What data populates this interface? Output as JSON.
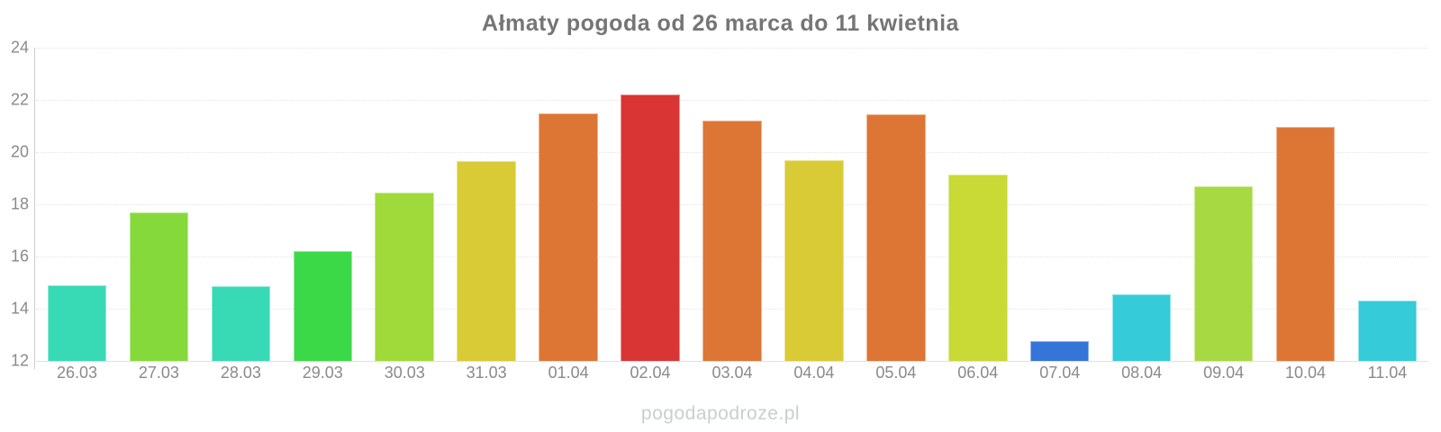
{
  "title": "Ałmaty pogoda od 26 marca do 11 kwietnia",
  "watermark": "pogodapodroze.pl",
  "chart_data": {
    "type": "bar",
    "title": "Ałmaty pogoda od 26 marca do 11 kwietnia",
    "xlabel": "",
    "ylabel": "",
    "ylim": [
      12,
      24
    ],
    "yticks": [
      12,
      14,
      16,
      18,
      20,
      22,
      24
    ],
    "grid": "horizontal-dotted",
    "legend": "none",
    "categories": [
      "26.03",
      "27.03",
      "28.03",
      "29.03",
      "30.03",
      "31.03",
      "01.04",
      "02.04",
      "03.04",
      "04.04",
      "05.04",
      "06.04",
      "07.04",
      "08.04",
      "09.04",
      "10.04",
      "11.04"
    ],
    "values": [
      14.9,
      17.7,
      14.85,
      16.2,
      18.45,
      19.65,
      21.5,
      22.2,
      21.2,
      19.7,
      21.45,
      19.15,
      12.75,
      14.55,
      18.7,
      20.95,
      14.3
    ],
    "bar_colors": [
      "#38d9b5",
      "#86d93a",
      "#38d9b5",
      "#3bd948",
      "#a0d93a",
      "#d9cb35",
      "#dd7535",
      "#d93535",
      "#dd7535",
      "#d9cb35",
      "#dd7535",
      "#c9d935",
      "#3575d9",
      "#35cbd9",
      "#a6d942",
      "#dd7535",
      "#35cbd9"
    ]
  }
}
